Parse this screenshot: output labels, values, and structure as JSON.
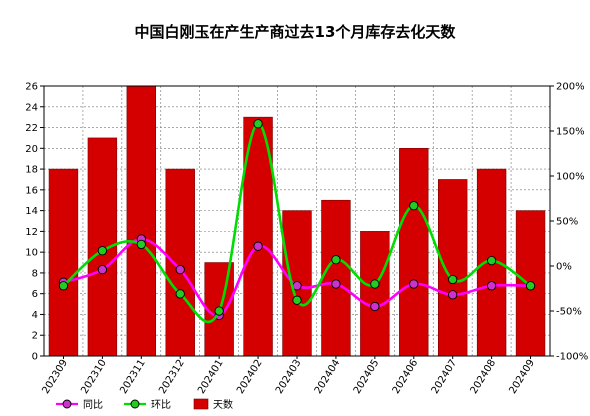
{
  "chart_data": {
    "type": "bar",
    "title": "中国白刚玉在产生产商过去13个月库存去化天数",
    "categories": [
      "202309",
      "202310",
      "202311",
      "202312",
      "202401",
      "202402",
      "202403",
      "202404",
      "202405",
      "202406",
      "202407",
      "202408",
      "202409"
    ],
    "bar_series": {
      "name": "天数",
      "color": "#d40000",
      "values": [
        18,
        21,
        26,
        18,
        9,
        23,
        14,
        15,
        12,
        20,
        17,
        18,
        14
      ]
    },
    "line_series": [
      {
        "name": "同比",
        "color": "#ff00ff",
        "marker_fill": "#cc33cc",
        "axis": "right",
        "values": [
          -18,
          -4,
          30,
          -4,
          -55,
          22,
          -22,
          -20,
          -45,
          -20,
          -32,
          -22,
          -22
        ]
      },
      {
        "name": "环比",
        "color": "#00dd00",
        "marker_fill": "#22cc22",
        "axis": "right",
        "values": [
          -22,
          17,
          24,
          -31,
          -50,
          158,
          -38,
          7,
          -20,
          67,
          -15,
          6,
          -22
        ]
      }
    ],
    "y_left": {
      "min": 0,
      "max": 26,
      "step": 2
    },
    "y_right": {
      "min": -100,
      "max": 200,
      "step": 50,
      "unit": "%"
    },
    "grid": true,
    "legend_position": "bottom-left"
  }
}
